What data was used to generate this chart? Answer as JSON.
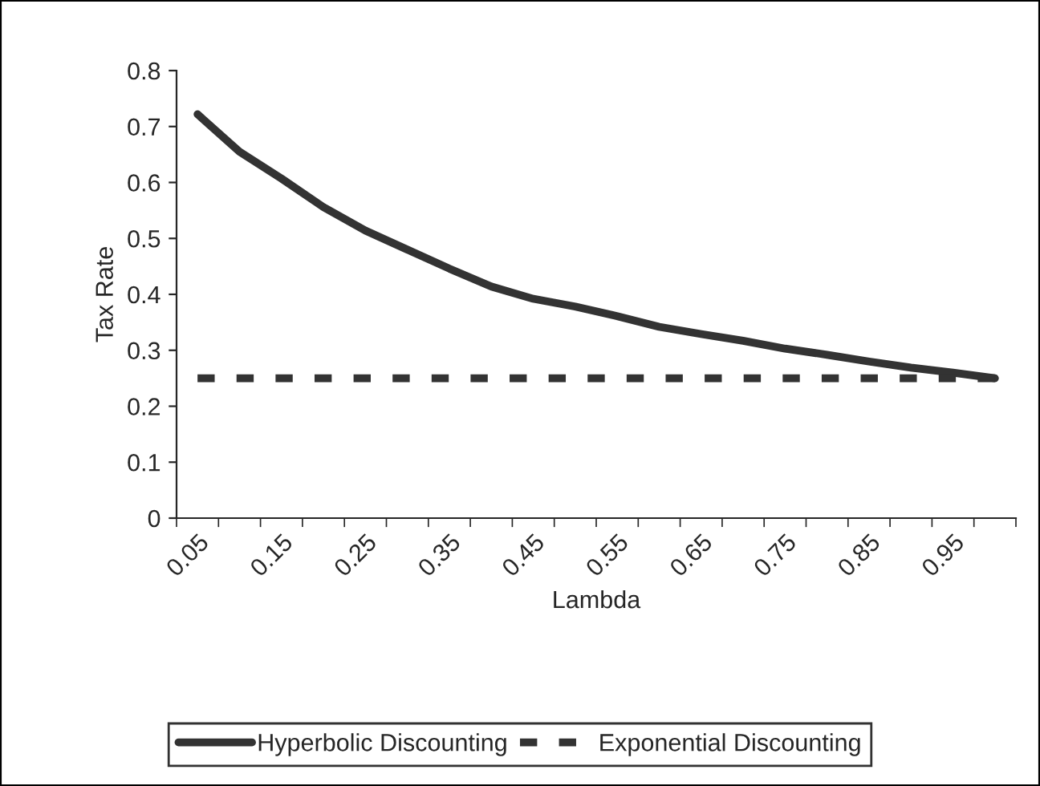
{
  "chart_data": {
    "type": "line",
    "xlabel": "Lambda",
    "ylabel": "Tax Rate",
    "categories": [
      "0.05",
      null,
      "0.15",
      null,
      "0.25",
      null,
      "0.35",
      null,
      "0.45",
      null,
      "0.55",
      null,
      "0.65",
      null,
      "0.75",
      null,
      "0.85",
      null,
      "0.95",
      null
    ],
    "series": [
      {
        "name": "Hyperbolic Discounting",
        "color": "#333333",
        "line_style": "solid",
        "values": [
          0.722,
          0.655,
          0.607,
          0.556,
          0.514,
          0.48,
          0.446,
          0.414,
          0.392,
          0.378,
          0.361,
          0.342,
          0.329,
          0.317,
          0.303,
          0.292,
          0.28,
          0.269,
          0.26,
          0.25
        ]
      },
      {
        "name": "Exponential Discounting",
        "color": "#333333",
        "line_style": "dashed",
        "values": [
          0.25,
          0.25,
          0.25,
          0.25,
          0.25,
          0.25,
          0.25,
          0.25,
          0.25,
          0.25,
          0.25,
          0.25,
          0.25,
          0.25,
          0.25,
          0.25,
          0.25,
          0.25,
          0.25,
          0.25
        ]
      }
    ],
    "ylim": [
      0,
      0.8
    ],
    "yticks": [
      0,
      0.1,
      0.2,
      0.3,
      0.4,
      0.5,
      0.6,
      0.7,
      0.8
    ],
    "grid": false,
    "legend": "bottom",
    "marker": "none"
  }
}
